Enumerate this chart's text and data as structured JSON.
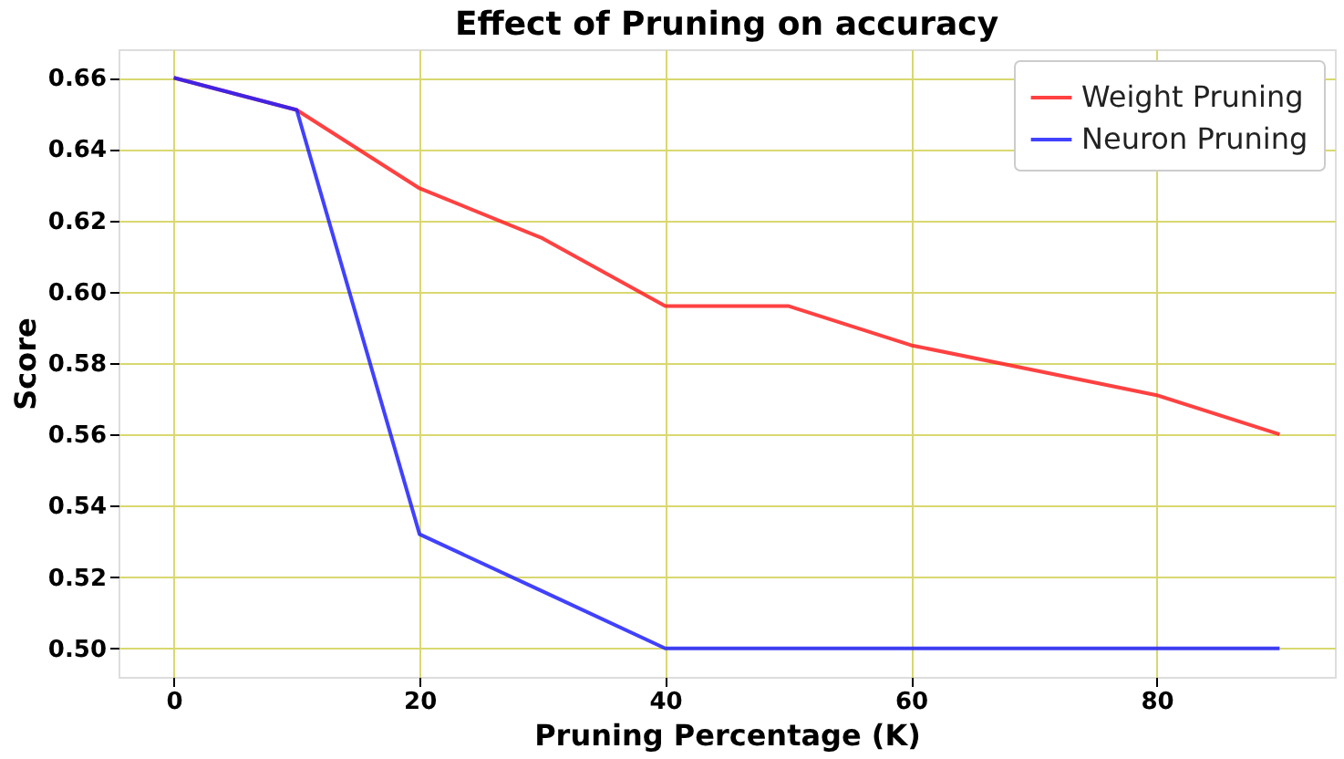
{
  "chart_data": {
    "type": "line",
    "title": "Effect of Pruning on accuracy",
    "xlabel": "Pruning Percentage (K)",
    "ylabel": "Score",
    "x": [
      0,
      10,
      20,
      30,
      40,
      50,
      60,
      70,
      80,
      90
    ],
    "series": [
      {
        "name": "Weight Pruning",
        "color": "#ff2020",
        "values": [
          0.66,
          0.651,
          0.629,
          0.615,
          0.596,
          0.596,
          0.585,
          0.578,
          0.571,
          0.56
        ]
      },
      {
        "name": "Neuron Pruning",
        "color": "#2020ff",
        "values": [
          0.66,
          0.651,
          0.532,
          0.516,
          0.5,
          0.5,
          0.5,
          0.5,
          0.5,
          0.5
        ]
      }
    ],
    "xlim": [
      -4.5,
      94.5
    ],
    "xticks": [
      0,
      20,
      40,
      60,
      80
    ],
    "ylim": [
      0.492,
      0.668
    ],
    "yticks": [
      {
        "value": 0.5,
        "label": "0.50"
      },
      0.52,
      0.54,
      0.56,
      0.58,
      {
        "value": 0.6,
        "label": "0.60"
      },
      0.62,
      0.64,
      0.66
    ],
    "grid": true,
    "legend": "top right",
    "marker": "none",
    "line_style": "solid"
  }
}
